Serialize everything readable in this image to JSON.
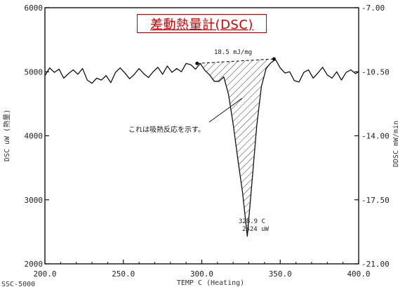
{
  "chart_data": {
    "type": "line",
    "title": "差動熱量計(DSC)",
    "xlabel": "TEMP C (Heating)",
    "ylabel_left": "DSC uW (熱量)",
    "ylabel_right": "DDSC mW/min",
    "xlim": [
      200,
      400
    ],
    "ylim_left": [
      2000,
      6000
    ],
    "ylim_right": [
      -21.0,
      -7.0
    ],
    "x_ticks": [
      "200.0",
      "250.0",
      "300.0",
      "350.0",
      "400.0"
    ],
    "y_left_ticks": [
      "6000",
      "5000",
      "4000",
      "3000",
      "2000"
    ],
    "y_right_ticks": [
      "-7.00",
      "-10.50",
      "-14.00",
      "-17.50",
      "-21.00"
    ],
    "series": [
      {
        "x": [
          200,
          203,
          206,
          209,
          212,
          215,
          218,
          221,
          224,
          227,
          230,
          233,
          236,
          239,
          242,
          245,
          248,
          251,
          254,
          257,
          260,
          263,
          266,
          269,
          272,
          275,
          278,
          281,
          284,
          287,
          290,
          293,
          296,
          299,
          302,
          305,
          308,
          311,
          314,
          317,
          320,
          323,
          326,
          329,
          332,
          335,
          338,
          341,
          344,
          347,
          350,
          353,
          356,
          359,
          362,
          365,
          368,
          371,
          374,
          377,
          380,
          383,
          386,
          389,
          392,
          395,
          398,
          400
        ],
        "y": [
          4940,
          5060,
          4990,
          5040,
          4900,
          4970,
          5030,
          4960,
          5050,
          4870,
          4820,
          4900,
          4870,
          4940,
          4830,
          4990,
          5060,
          4980,
          4890,
          4960,
          5050,
          4970,
          4910,
          5000,
          5070,
          4960,
          5090,
          4990,
          5050,
          5000,
          5130,
          5110,
          5040,
          5130,
          5020,
          4950,
          4850,
          4850,
          4920,
          4650,
          4180,
          3630,
          3110,
          2430,
          3280,
          4150,
          4770,
          5050,
          5140,
          5190,
          5060,
          4980,
          5000,
          4860,
          4840,
          4990,
          5030,
          4900,
          4980,
          5070,
          4950,
          4900,
          5000,
          4870,
          4990,
          5030,
          4970,
          5000
        ]
      }
    ],
    "peak_onset": {
      "x": 297,
      "y": 5130
    },
    "peak_end": {
      "x": 346,
      "y": 5200
    },
    "peak_label_temp": "328.9 C",
    "peak_label_value": "2424 uW",
    "enthalpy_label": "18.5 mJ/mg",
    "annotation": "これは吸熱反応を示す。",
    "footer_left": "SSC-5000",
    "legend": "none"
  }
}
